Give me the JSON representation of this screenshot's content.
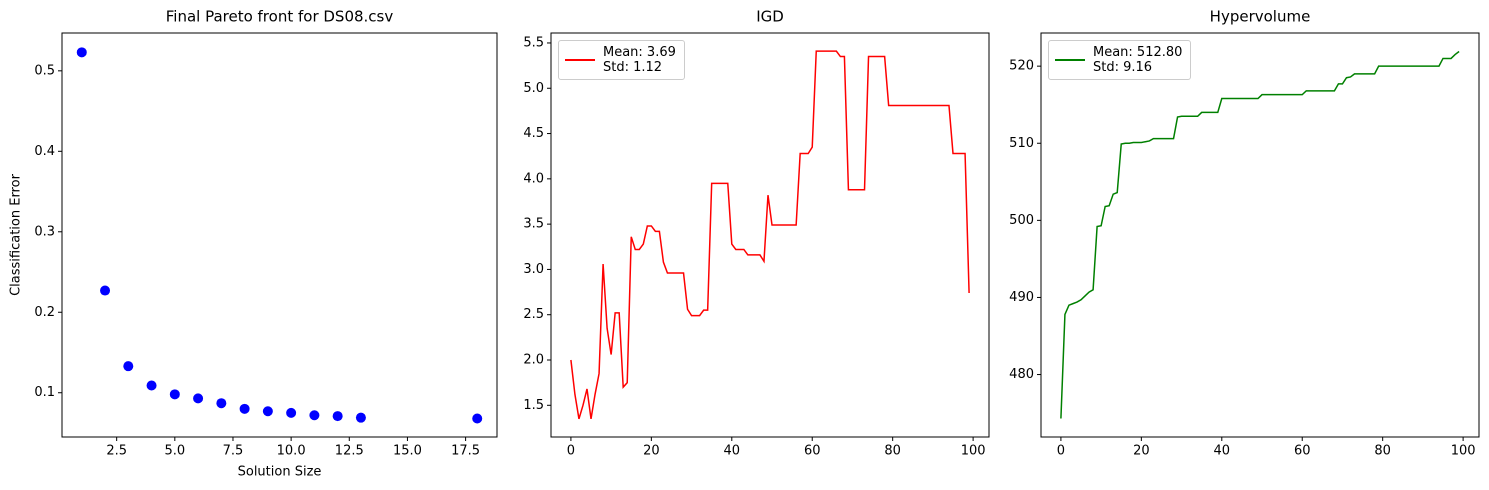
{
  "chart_data": [
    {
      "type": "scatter",
      "title": "Final Pareto front for DS08.csv",
      "xlabel": "Solution Size",
      "ylabel": "Classification Error",
      "color": "#0000ff",
      "x": [
        1,
        2,
        3,
        4,
        5,
        6,
        7,
        8,
        9,
        10,
        11,
        12,
        13,
        18
      ],
      "values": [
        0.523,
        0.227,
        0.133,
        0.109,
        0.098,
        0.093,
        0.087,
        0.08,
        0.077,
        0.075,
        0.072,
        0.071,
        0.069,
        0.068
      ],
      "xlim": [
        0.15,
        18.85
      ],
      "xticks": [
        2.5,
        {
          "value": 5,
          "label": "5.0"
        },
        7.5,
        {
          "value": 10,
          "label": "10.0"
        },
        12.5,
        {
          "value": 15,
          "label": "15.0"
        },
        17.5
      ],
      "ylim": [
        0.045,
        0.547
      ],
      "yticks": [
        0.1,
        0.2,
        0.3,
        0.4,
        0.5
      ]
    },
    {
      "type": "line",
      "title": "IGD",
      "legend": "upper left",
      "x": [
        0,
        1,
        2,
        3,
        4,
        5,
        6,
        7,
        8,
        9,
        10,
        11,
        12,
        13,
        14,
        15,
        16,
        17,
        18,
        19,
        20,
        21,
        22,
        23,
        24,
        25,
        26,
        27,
        28,
        29,
        30,
        31,
        32,
        33,
        34,
        35,
        36,
        37,
        38,
        39,
        40,
        41,
        42,
        43,
        44,
        45,
        46,
        47,
        48,
        49,
        50,
        51,
        52,
        53,
        54,
        55,
        56,
        57,
        58,
        59,
        60,
        61,
        62,
        63,
        64,
        65,
        66,
        67,
        68,
        69,
        70,
        71,
        72,
        73,
        74,
        75,
        76,
        77,
        78,
        79,
        80,
        81,
        82,
        83,
        84,
        85,
        86,
        87,
        88,
        89,
        90,
        91,
        92,
        93,
        94,
        95,
        96,
        97,
        98,
        99
      ],
      "series": [
        {
          "name": "Mean: 3.69\nStd: 1.12",
          "color": "#ff0000",
          "values": [
            2.0,
            1.62,
            1.35,
            1.5,
            1.68,
            1.35,
            1.62,
            1.85,
            3.06,
            2.35,
            2.06,
            2.52,
            2.52,
            1.7,
            1.75,
            3.36,
            3.22,
            3.22,
            3.28,
            3.48,
            3.48,
            3.42,
            3.42,
            3.08,
            2.96,
            2.96,
            2.96,
            2.96,
            2.96,
            2.56,
            2.49,
            2.49,
            2.49,
            2.55,
            2.55,
            3.95,
            3.95,
            3.95,
            3.95,
            3.95,
            3.28,
            3.22,
            3.22,
            3.22,
            3.16,
            3.16,
            3.16,
            3.16,
            3.09,
            3.82,
            3.49,
            3.49,
            3.49,
            3.49,
            3.49,
            3.49,
            3.49,
            4.28,
            4.28,
            4.28,
            4.35,
            5.41,
            5.41,
            5.41,
            5.41,
            5.41,
            5.41,
            5.35,
            5.35,
            3.88,
            3.88,
            3.88,
            3.88,
            3.88,
            5.35,
            5.35,
            5.35,
            5.35,
            5.35,
            4.81,
            4.81,
            4.81,
            4.81,
            4.81,
            4.81,
            4.81,
            4.81,
            4.81,
            4.81,
            4.81,
            4.81,
            4.81,
            4.81,
            4.81,
            4.81,
            4.28,
            4.28,
            4.28,
            4.28,
            2.74
          ]
        }
      ],
      "xlim": [
        -4.95,
        103.95
      ],
      "xticks": [
        0,
        20,
        40,
        60,
        80,
        100
      ],
      "ylim": [
        1.15,
        5.61
      ],
      "yticks": [
        1.5,
        {
          "value": 2,
          "label": "2.0"
        },
        2.5,
        {
          "value": 3,
          "label": "3.0"
        },
        3.5,
        {
          "value": 4,
          "label": "4.0"
        },
        4.5,
        {
          "value": 5,
          "label": "5.0"
        },
        5.5
      ]
    },
    {
      "type": "line",
      "title": "Hypervolume",
      "legend": "upper left",
      "x": [
        0,
        1,
        2,
        3,
        4,
        5,
        6,
        7,
        8,
        9,
        10,
        11,
        12,
        13,
        14,
        15,
        16,
        17,
        18,
        19,
        20,
        21,
        22,
        23,
        24,
        25,
        26,
        27,
        28,
        29,
        30,
        31,
        32,
        33,
        34,
        35,
        36,
        37,
        38,
        39,
        40,
        41,
        42,
        43,
        44,
        45,
        46,
        47,
        48,
        49,
        50,
        51,
        52,
        53,
        54,
        55,
        56,
        57,
        58,
        59,
        60,
        61,
        62,
        63,
        64,
        65,
        66,
        67,
        68,
        69,
        70,
        71,
        72,
        73,
        74,
        75,
        76,
        77,
        78,
        79,
        80,
        81,
        82,
        83,
        84,
        85,
        86,
        87,
        88,
        89,
        90,
        91,
        92,
        93,
        94,
        95,
        96,
        97,
        98,
        99
      ],
      "series": [
        {
          "name": "Mean: 512.80\nStd: 9.16",
          "color": "#008000",
          "values": [
            474.3,
            487.8,
            489.0,
            489.2,
            489.4,
            489.7,
            490.2,
            490.7,
            491.0,
            499.2,
            499.3,
            501.8,
            501.9,
            503.4,
            503.6,
            509.9,
            510.0,
            510.0,
            510.1,
            510.1,
            510.1,
            510.2,
            510.3,
            510.6,
            510.6,
            510.6,
            510.6,
            510.6,
            510.6,
            513.4,
            513.5,
            513.5,
            513.5,
            513.5,
            513.5,
            514.0,
            514.0,
            514.0,
            514.0,
            514.0,
            515.8,
            515.8,
            515.8,
            515.8,
            515.8,
            515.8,
            515.8,
            515.8,
            515.8,
            515.8,
            516.3,
            516.3,
            516.3,
            516.3,
            516.3,
            516.3,
            516.3,
            516.3,
            516.3,
            516.3,
            516.3,
            516.8,
            516.8,
            516.8,
            516.8,
            516.8,
            516.8,
            516.8,
            516.8,
            517.7,
            517.7,
            518.5,
            518.6,
            519.0,
            519.0,
            519.0,
            519.0,
            519.0,
            519.0,
            520.0,
            520.0,
            520.0,
            520.0,
            520.0,
            520.0,
            520.0,
            520.0,
            520.0,
            520.0,
            520.0,
            520.0,
            520.0,
            520.0,
            520.0,
            520.0,
            521.0,
            521.0,
            521.0,
            521.5,
            521.9
          ]
        }
      ],
      "xlim": [
        -4.95,
        103.95
      ],
      "xticks": [
        0,
        20,
        40,
        60,
        80,
        100
      ],
      "ylim": [
        471.9,
        524.3
      ],
      "yticks": [
        480,
        490,
        500,
        510,
        520
      ]
    }
  ]
}
